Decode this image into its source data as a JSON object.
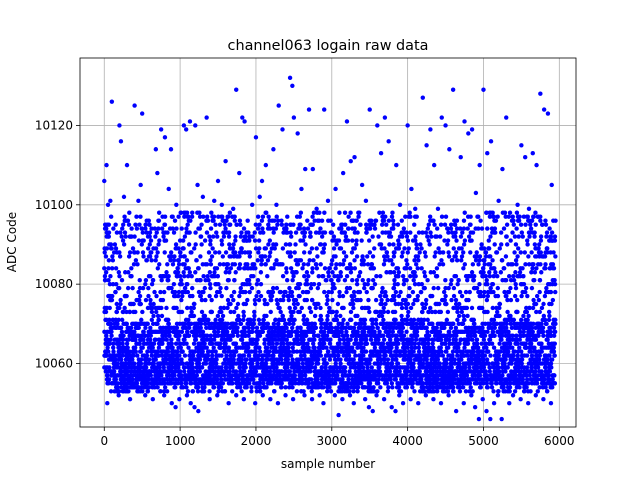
{
  "chart_data": {
    "type": "scatter",
    "title": "channel063 logain raw data",
    "xlabel": "sample number",
    "ylabel": "ADC Code",
    "xlim": [
      -320,
      6220
    ],
    "ylim": [
      10044,
      10137
    ],
    "x_ticks": [
      0,
      1000,
      2000,
      3000,
      4000,
      5000,
      6000
    ],
    "x_tick_labels": [
      "0",
      "1000",
      "2000",
      "3000",
      "4000",
      "5000",
      "6000"
    ],
    "y_ticks": [
      10060,
      10080,
      10100,
      10120
    ],
    "y_tick_labels": [
      "10060",
      "10080",
      "10100",
      "10120"
    ],
    "grid": true,
    "marker_color": "#0000ff",
    "series": [
      {
        "n_samples": 5950,
        "x_range": [
          0,
          5950
        ],
        "y_range": [
          10046,
          10132
        ],
        "values": [
          [
            0,
            10106
          ],
          [
            30,
            10110
          ],
          [
            50,
            10100
          ],
          [
            60,
            10092
          ],
          [
            80,
            10101
          ],
          [
            100,
            10126
          ],
          [
            120,
            10094
          ],
          [
            150,
            10095
          ],
          [
            170,
            10088
          ],
          [
            200,
            10120
          ],
          [
            220,
            10116
          ],
          [
            260,
            10102
          ],
          [
            280,
            10096
          ],
          [
            300,
            10110
          ],
          [
            330,
            10098
          ],
          [
            360,
            10092
          ],
          [
            400,
            10125
          ],
          [
            430,
            10094
          ],
          [
            450,
            10101
          ],
          [
            480,
            10105
          ],
          [
            500,
            10123
          ],
          [
            520,
            10091
          ],
          [
            560,
            10096
          ],
          [
            600,
            10090
          ],
          [
            620,
            10088
          ],
          [
            680,
            10114
          ],
          [
            700,
            10108
          ],
          [
            720,
            10096
          ],
          [
            750,
            10119
          ],
          [
            780,
            10093
          ],
          [
            800,
            10117
          ],
          [
            850,
            10104
          ],
          [
            880,
            10114
          ],
          [
            920,
            10093
          ],
          [
            950,
            10100
          ],
          [
            980,
            10097
          ],
          [
            1000,
            10091
          ],
          [
            1050,
            10120
          ],
          [
            1080,
            10119
          ],
          [
            1100,
            10095
          ],
          [
            1130,
            10121
          ],
          [
            1160,
            10098
          ],
          [
            1200,
            10120
          ],
          [
            1230,
            10105
          ],
          [
            1260,
            10094
          ],
          [
            1300,
            10102
          ],
          [
            1350,
            10122
          ],
          [
            1400,
            10091
          ],
          [
            1450,
            10101
          ],
          [
            1500,
            10106
          ],
          [
            1550,
            10100
          ],
          [
            1600,
            10111
          ],
          [
            1650,
            10095
          ],
          [
            1700,
            10099
          ],
          [
            1740,
            10129
          ],
          [
            1780,
            10108
          ],
          [
            1820,
            10122
          ],
          [
            1850,
            10121
          ],
          [
            1900,
            10093
          ],
          [
            1950,
            10100
          ],
          [
            2000,
            10117
          ],
          [
            2050,
            10102
          ],
          [
            2080,
            10106
          ],
          [
            2130,
            10110
          ],
          [
            2180,
            10096
          ],
          [
            2230,
            10114
          ],
          [
            2270,
            10100
          ],
          [
            2300,
            10125
          ],
          [
            2350,
            10119
          ],
          [
            2400,
            10095
          ],
          [
            2450,
            10132
          ],
          [
            2480,
            10130
          ],
          [
            2500,
            10122
          ],
          [
            2550,
            10118
          ],
          [
            2600,
            10104
          ],
          [
            2650,
            10109
          ],
          [
            2700,
            10124
          ],
          [
            2750,
            10109
          ],
          [
            2800,
            10099
          ],
          [
            2850,
            10094
          ],
          [
            2900,
            10124
          ],
          [
            2950,
            10101
          ],
          [
            3000,
            10093
          ],
          [
            3050,
            10104
          ],
          [
            3100,
            10098
          ],
          [
            3150,
            10108
          ],
          [
            3200,
            10121
          ],
          [
            3250,
            10111
          ],
          [
            3300,
            10112
          ],
          [
            3350,
            10098
          ],
          [
            3400,
            10105
          ],
          [
            3450,
            10101
          ],
          [
            3500,
            10124
          ],
          [
            3550,
            10095
          ],
          [
            3600,
            10120
          ],
          [
            3650,
            10113
          ],
          [
            3700,
            10122
          ],
          [
            3750,
            10116
          ],
          [
            3800,
            10098
          ],
          [
            3850,
            10110
          ],
          [
            3900,
            10100
          ],
          [
            3950,
            10094
          ],
          [
            4000,
            10120
          ],
          [
            4050,
            10104
          ],
          [
            4100,
            10099
          ],
          [
            4150,
            10093
          ],
          [
            4200,
            10127
          ],
          [
            4250,
            10115
          ],
          [
            4300,
            10119
          ],
          [
            4350,
            10110
          ],
          [
            4400,
            10099
          ],
          [
            4450,
            10122
          ],
          [
            4500,
            10120
          ],
          [
            4550,
            10114
          ],
          [
            4600,
            10129
          ],
          [
            4650,
            10096
          ],
          [
            4700,
            10112
          ],
          [
            4750,
            10121
          ],
          [
            4800,
            10118
          ],
          [
            4850,
            10119
          ],
          [
            4900,
            10103
          ],
          [
            4950,
            10110
          ],
          [
            5000,
            10129
          ],
          [
            5050,
            10113
          ],
          [
            5100,
            10116
          ],
          [
            5150,
            10094
          ],
          [
            5200,
            10101
          ],
          [
            5250,
            10109
          ],
          [
            5300,
            10122
          ],
          [
            5350,
            10098
          ],
          [
            5400,
            10095
          ],
          [
            5450,
            10100
          ],
          [
            5500,
            10115
          ],
          [
            5550,
            10112
          ],
          [
            5600,
            10099
          ],
          [
            5650,
            10113
          ],
          [
            5700,
            10110
          ],
          [
            5750,
            10128
          ],
          [
            5800,
            10124
          ],
          [
            5850,
            10123
          ],
          [
            5900,
            10105
          ],
          [
            5950,
            10096
          ],
          [
            40,
            10050
          ],
          [
            90,
            10053
          ],
          [
            140,
            10055
          ],
          [
            190,
            10052
          ],
          [
            240,
            10056
          ],
          [
            290,
            10054
          ],
          [
            340,
            10051
          ],
          [
            390,
            10055
          ],
          [
            440,
            10053
          ],
          [
            490,
            10057
          ],
          [
            540,
            10052
          ],
          [
            590,
            10054
          ],
          [
            640,
            10051
          ],
          [
            690,
            10056
          ],
          [
            740,
            10053
          ],
          [
            790,
            10052
          ],
          [
            840,
            10055
          ],
          [
            890,
            10050
          ],
          [
            940,
            10049
          ],
          [
            990,
            10051
          ],
          [
            1040,
            10054
          ],
          [
            1090,
            10052
          ],
          [
            1140,
            10050
          ],
          [
            1190,
            10049
          ],
          [
            1240,
            10048
          ],
          [
            1290,
            10053
          ],
          [
            1340,
            10055
          ],
          [
            1390,
            10051
          ],
          [
            1440,
            10054
          ],
          [
            1490,
            10052
          ],
          [
            1540,
            10056
          ],
          [
            1590,
            10053
          ],
          [
            1640,
            10050
          ],
          [
            1690,
            10055
          ],
          [
            1740,
            10052
          ],
          [
            1790,
            10054
          ],
          [
            1840,
            10051
          ],
          [
            1890,
            10056
          ],
          [
            1940,
            10053
          ],
          [
            1990,
            10050
          ],
          [
            2040,
            10055
          ],
          [
            2090,
            10052
          ],
          [
            2140,
            10054
          ],
          [
            2190,
            10051
          ],
          [
            2240,
            10053
          ],
          [
            2290,
            10050
          ],
          [
            2340,
            10055
          ],
          [
            2390,
            10052
          ],
          [
            2440,
            10054
          ],
          [
            2490,
            10051
          ],
          [
            2540,
            10053
          ],
          [
            2590,
            10056
          ],
          [
            2640,
            10052
          ],
          [
            2690,
            10055
          ],
          [
            2740,
            10051
          ],
          [
            2790,
            10054
          ],
          [
            2840,
            10052
          ],
          [
            2890,
            10050
          ],
          [
            2940,
            10053
          ],
          [
            2990,
            10055
          ],
          [
            3040,
            10052
          ],
          [
            3090,
            10047
          ],
          [
            3140,
            10051
          ],
          [
            3190,
            10054
          ],
          [
            3240,
            10052
          ],
          [
            3290,
            10050
          ],
          [
            3340,
            10053
          ],
          [
            3390,
            10055
          ],
          [
            3440,
            10051
          ],
          [
            3490,
            10049
          ],
          [
            3540,
            10048
          ],
          [
            3590,
            10052
          ],
          [
            3640,
            10054
          ],
          [
            3690,
            10051
          ],
          [
            3740,
            10053
          ],
          [
            3790,
            10049
          ],
          [
            3840,
            10048
          ],
          [
            3890,
            10052
          ],
          [
            3940,
            10050
          ],
          [
            3990,
            10054
          ],
          [
            4040,
            10051
          ],
          [
            4090,
            10053
          ],
          [
            4140,
            10050
          ],
          [
            4190,
            10055
          ],
          [
            4240,
            10052
          ],
          [
            4290,
            10054
          ],
          [
            4340,
            10051
          ],
          [
            4390,
            10053
          ],
          [
            4440,
            10050
          ],
          [
            4490,
            10055
          ],
          [
            4540,
            10052
          ],
          [
            4590,
            10054
          ],
          [
            4640,
            10048
          ],
          [
            4690,
            10053
          ],
          [
            4740,
            10050
          ],
          [
            4790,
            10055
          ],
          [
            4840,
            10052
          ],
          [
            4890,
            10049
          ],
          [
            4940,
            10046
          ],
          [
            4990,
            10051
          ],
          [
            5040,
            10048
          ],
          [
            5090,
            10046
          ],
          [
            5140,
            10050
          ],
          [
            5190,
            10052
          ],
          [
            5240,
            10046
          ],
          [
            5290,
            10053
          ],
          [
            5340,
            10050
          ],
          [
            5390,
            10052
          ],
          [
            5440,
            10054
          ],
          [
            5490,
            10051
          ],
          [
            5540,
            10053
          ],
          [
            5590,
            10050
          ],
          [
            5640,
            10055
          ],
          [
            5690,
            10052
          ],
          [
            5740,
            10054
          ],
          [
            5790,
            10051
          ],
          [
            5840,
            10053
          ],
          [
            5890,
            10050
          ],
          [
            5940,
            10055
          ]
        ]
      }
    ]
  }
}
